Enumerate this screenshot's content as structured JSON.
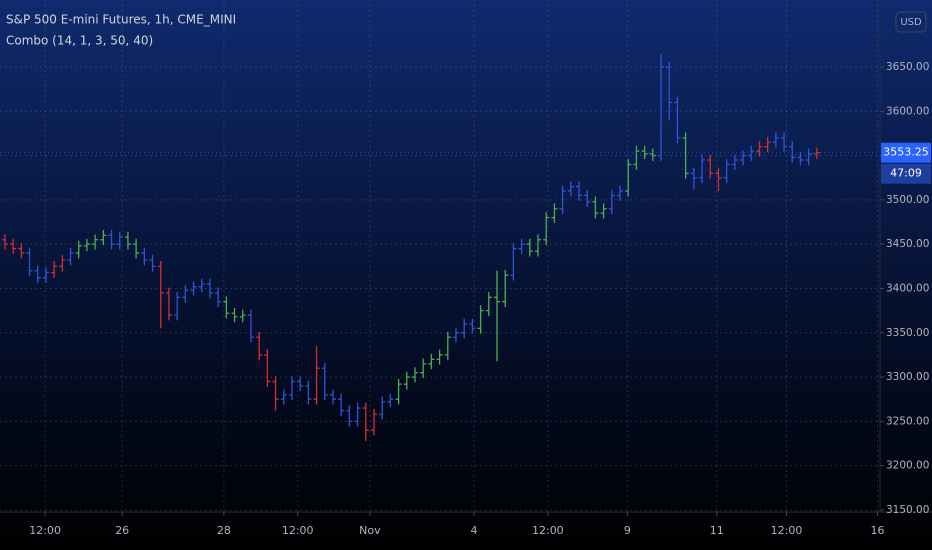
{
  "chart_data": {
    "type": "ohlc",
    "title": "S&P 500 E-mini Futures, 1h, CME_MINI",
    "indicator": "Combo (14, 1, 3, 50, 40)",
    "currency": "USD",
    "countdown": "47:09",
    "grid": true,
    "open": [
      3455,
      3450,
      3445,
      3440,
      3420,
      3412,
      3418,
      3425,
      3432,
      3440,
      3448,
      3450,
      3455,
      3460,
      3450,
      3458,
      3450,
      3440,
      3432,
      3425,
      3395,
      3370,
      3390,
      3398,
      3402,
      3405,
      3395,
      3385,
      3372,
      3368,
      3370,
      3345,
      3325,
      3295,
      3275,
      3280,
      3295,
      3290,
      3275,
      3310,
      3280,
      3275,
      3262,
      3250,
      3265,
      3240,
      3258,
      3272,
      3275,
      3292,
      3300,
      3305,
      3315,
      3320,
      3325,
      3345,
      3350,
      3360,
      3355,
      3375,
      3390,
      3385,
      3415,
      3445,
      3450,
      3442,
      3455,
      3480,
      3490,
      3510,
      3515,
      3505,
      3498,
      3485,
      3490,
      3505,
      3510,
      3540,
      3555,
      3552,
      3550,
      3650,
      3610,
      3570,
      3530,
      3525,
      3545,
      3530,
      3525,
      3540,
      3545,
      3550,
      3555,
      3560,
      3565,
      3570,
      3560,
      3548,
      3545,
      3552
    ],
    "high": [
      3461,
      3456,
      3451,
      3446,
      3426,
      3424,
      3431,
      3438,
      3446,
      3454,
      3456,
      3461,
      3466,
      3466,
      3464,
      3464,
      3456,
      3446,
      3438,
      3431,
      3401,
      3396,
      3404,
      3408,
      3411,
      3411,
      3401,
      3391,
      3378,
      3376,
      3376,
      3351,
      3331,
      3301,
      3286,
      3301,
      3301,
      3296,
      3335,
      3316,
      3286,
      3281,
      3268,
      3271,
      3271,
      3264,
      3278,
      3281,
      3298,
      3306,
      3311,
      3321,
      3326,
      3331,
      3351,
      3356,
      3366,
      3366,
      3381,
      3396,
      3420,
      3421,
      3451,
      3456,
      3456,
      3461,
      3486,
      3496,
      3516,
      3521,
      3521,
      3511,
      3504,
      3496,
      3511,
      3516,
      3546,
      3561,
      3561,
      3558,
      3665,
      3656,
      3616,
      3576,
      3536,
      3551,
      3551,
      3536,
      3546,
      3551,
      3556,
      3561,
      3566,
      3571,
      3576,
      3576,
      3566,
      3554,
      3558,
      3559
    ],
    "low": [
      3444,
      3439,
      3434,
      3414,
      3406,
      3406,
      3412,
      3419,
      3426,
      3434,
      3442,
      3444,
      3449,
      3444,
      3444,
      3444,
      3434,
      3426,
      3419,
      3355,
      3364,
      3364,
      3384,
      3392,
      3396,
      3389,
      3379,
      3366,
      3362,
      3362,
      3339,
      3319,
      3289,
      3262,
      3269,
      3274,
      3284,
      3269,
      3269,
      3274,
      3269,
      3256,
      3244,
      3244,
      3228,
      3234,
      3252,
      3266,
      3269,
      3286,
      3294,
      3299,
      3309,
      3314,
      3319,
      3339,
      3344,
      3349,
      3349,
      3369,
      3318,
      3379,
      3409,
      3439,
      3436,
      3436,
      3449,
      3474,
      3484,
      3504,
      3499,
      3492,
      3479,
      3479,
      3484,
      3499,
      3504,
      3534,
      3546,
      3544,
      3544,
      3590,
      3564,
      3524,
      3512,
      3519,
      3524,
      3510,
      3519,
      3534,
      3539,
      3544,
      3549,
      3554,
      3559,
      3554,
      3542,
      3539,
      3539,
      3546
    ],
    "close": [
      3450,
      3445,
      3440,
      3420,
      3412,
      3418,
      3425,
      3432,
      3440,
      3448,
      3450,
      3455,
      3460,
      3450,
      3458,
      3450,
      3440,
      3432,
      3425,
      3395,
      3370,
      3390,
      3398,
      3402,
      3405,
      3395,
      3385,
      3372,
      3368,
      3370,
      3345,
      3325,
      3295,
      3275,
      3280,
      3295,
      3290,
      3275,
      3310,
      3280,
      3275,
      3262,
      3250,
      3265,
      3240,
      3258,
      3272,
      3275,
      3292,
      3300,
      3305,
      3315,
      3320,
      3325,
      3345,
      3350,
      3360,
      3355,
      3375,
      3390,
      3385,
      3415,
      3445,
      3450,
      3442,
      3455,
      3480,
      3490,
      3510,
      3515,
      3505,
      3498,
      3485,
      3490,
      3505,
      3510,
      3540,
      3555,
      3552,
      3550,
      3650,
      3610,
      3570,
      3530,
      3525,
      3545,
      3530,
      3525,
      3540,
      3545,
      3550,
      3555,
      3560,
      3565,
      3570,
      3560,
      3548,
      3545,
      3552,
      3553.25
    ],
    "colors": [
      "#d32f2f",
      "#d32f2f",
      "#d32f2f",
      "#2f54d8",
      "#2f54d8",
      "#2f54d8",
      "#d32f2f",
      "#d32f2f",
      "#2f54d8",
      "#4caf50",
      "#4caf50",
      "#4caf50",
      "#4caf50",
      "#2f54d8",
      "#2f54d8",
      "#4caf50",
      "#4caf50",
      "#2f54d8",
      "#2f54d8",
      "#d32f2f",
      "#d32f2f",
      "#2f54d8",
      "#2f54d8",
      "#2f54d8",
      "#2f54d8",
      "#2f54d8",
      "#2f54d8",
      "#4caf50",
      "#4caf50",
      "#4caf50",
      "#2f54d8",
      "#d32f2f",
      "#d32f2f",
      "#d32f2f",
      "#2f54d8",
      "#2f54d8",
      "#2f54d8",
      "#2f54d8",
      "#d32f2f",
      "#2f54d8",
      "#2f54d8",
      "#2f54d8",
      "#2f54d8",
      "#2f54d8",
      "#d32f2f",
      "#d32f2f",
      "#2f54d8",
      "#2f54d8",
      "#4caf50",
      "#4caf50",
      "#4caf50",
      "#4caf50",
      "#4caf50",
      "#4caf50",
      "#4caf50",
      "#2f54d8",
      "#2f54d8",
      "#2f54d8",
      "#4caf50",
      "#4caf50",
      "#4caf50",
      "#4caf50",
      "#2f54d8",
      "#2f54d8",
      "#4caf50",
      "#4caf50",
      "#4caf50",
      "#4caf50",
      "#2f54d8",
      "#2f54d8",
      "#2f54d8",
      "#2f54d8",
      "#4caf50",
      "#4caf50",
      "#2f54d8",
      "#2f54d8",
      "#4caf50",
      "#4caf50",
      "#4caf50",
      "#4caf50",
      "#2f54d8",
      "#2f54d8",
      "#2f54d8",
      "#4caf50",
      "#2f54d8",
      "#2f54d8",
      "#d32f2f",
      "#d32f2f",
      "#2f54d8",
      "#2f54d8",
      "#2f54d8",
      "#2f54d8",
      "#d32f2f",
      "#d32f2f",
      "#2f54d8",
      "#2f54d8",
      "#2f54d8",
      "#2f54d8",
      "#2f54d8",
      "#d32f2f"
    ],
    "last_price_color": "#2962ff",
    "xlim": [
      -0.6,
      106.7
    ],
    "xticks": [
      {
        "value": 4.9,
        "label": "12:00"
      },
      {
        "value": 14.3,
        "label": "26"
      },
      {
        "value": 26.7,
        "label": "28"
      },
      {
        "value": 35.7,
        "label": "12:00"
      },
      {
        "value": 44.5,
        "label": "Nov"
      },
      {
        "value": 57.2,
        "label": "4"
      },
      {
        "value": 66.2,
        "label": "12:00"
      },
      {
        "value": 75.9,
        "label": "9"
      },
      {
        "value": 86.8,
        "label": "11"
      },
      {
        "value": 95.3,
        "label": "12:00"
      },
      {
        "value": 106.4,
        "label": "16"
      }
    ],
    "ylim": [
      3147.7,
      3725.6
    ],
    "yticks": [
      {
        "value": 3150,
        "label": "3150.00"
      },
      {
        "value": 3200,
        "label": "3200.00"
      },
      {
        "value": 3250,
        "label": "3250.00"
      },
      {
        "value": 3300,
        "label": "3300.00"
      },
      {
        "value": 3350,
        "label": "3350.00"
      },
      {
        "value": 3400,
        "label": "3400.00"
      },
      {
        "value": 3450,
        "label": "3450.00"
      },
      {
        "value": 3500,
        "label": "3500.00"
      },
      {
        "value": 3550,
        "label": "3550.00"
      },
      {
        "value": 3600,
        "label": "3600.00"
      },
      {
        "value": 3650,
        "label": "3650.00"
      }
    ]
  }
}
